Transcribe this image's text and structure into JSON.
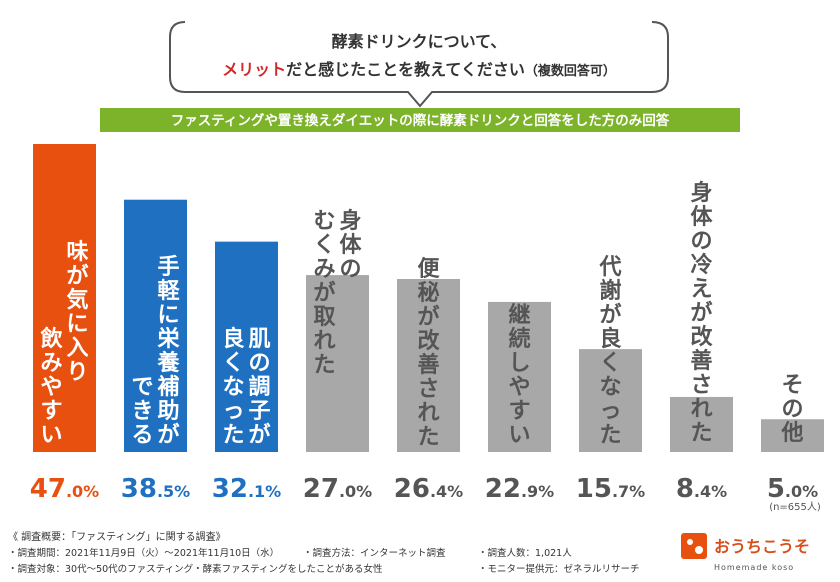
{
  "header": {
    "question_line1": "酵素ドリンクについて、",
    "question_line2_highlight": "メリット",
    "question_line2_rest": "だと感じたことを教えてください",
    "question_note": "（複数回答可）",
    "banner": "ファスティングや置き換えダイエットの際に酵素ドリンクと回答をした方のみ回答"
  },
  "chart_data": {
    "type": "bar",
    "categories": [
      [
        "味が気に入り",
        "飲みやすい"
      ],
      [
        "手軽に栄養補助が",
        "できる"
      ],
      [
        "肌の調子が",
        "良くなった"
      ],
      [
        "身体の",
        "むくみが取れた"
      ],
      [
        "便秘が改善された"
      ],
      [
        "継続しやすい"
      ],
      [
        "代謝が良くなった"
      ],
      [
        "身体の冷えが改善された"
      ],
      [
        "その他"
      ]
    ],
    "values": [
      47.0,
      38.5,
      32.1,
      27.0,
      26.4,
      22.9,
      15.7,
      8.4,
      5.0
    ],
    "value_labels": [
      [
        "47",
        ".0%"
      ],
      [
        "38",
        ".5%"
      ],
      [
        "32",
        ".1%"
      ],
      [
        "27",
        ".0%"
      ],
      [
        "26",
        ".4%"
      ],
      [
        "22",
        ".9%"
      ],
      [
        "15",
        ".7%"
      ],
      [
        "8",
        ".4%"
      ],
      [
        "5",
        ".0%"
      ]
    ],
    "colors": [
      "#e8500f",
      "#1f70c1",
      "#1f70c1",
      "#a8a8a8",
      "#a8a8a8",
      "#a8a8a8",
      "#a8a8a8",
      "#a8a8a8",
      "#a8a8a8"
    ],
    "label_colors": [
      "#ffffff",
      "#ffffff",
      "#ffffff",
      "#555555",
      "#555555",
      "#555555",
      "#555555",
      "#555555",
      "#555555"
    ],
    "pct_colors": [
      "#e8500f",
      "#1f70c1",
      "#1f70c1",
      "#555555",
      "#555555",
      "#555555",
      "#555555",
      "#555555",
      "#555555"
    ],
    "n_label": "(n=655人)",
    "ylim": [
      0,
      50
    ]
  },
  "colors": {
    "banner_bg": "#7db32a",
    "bubble_border": "#555555",
    "highlight": "#d22a2a"
  },
  "footer": {
    "title": "《 調査概要：「ファスティング」に関する調査》",
    "items": [
      "・調査期間：2021年11月9日（火）〜2021年11月10日（水）",
      "・調査方法：インターネット調査",
      "・調査人数：1,021人",
      "・調査対象：30代〜50代のファスティング・酵素ファスティングをしたことがある女性",
      "・モニター提供元：ゼネラルリサーチ"
    ]
  },
  "logo": {
    "jp": "おうちこうそ",
    "en": "Homemade koso"
  }
}
